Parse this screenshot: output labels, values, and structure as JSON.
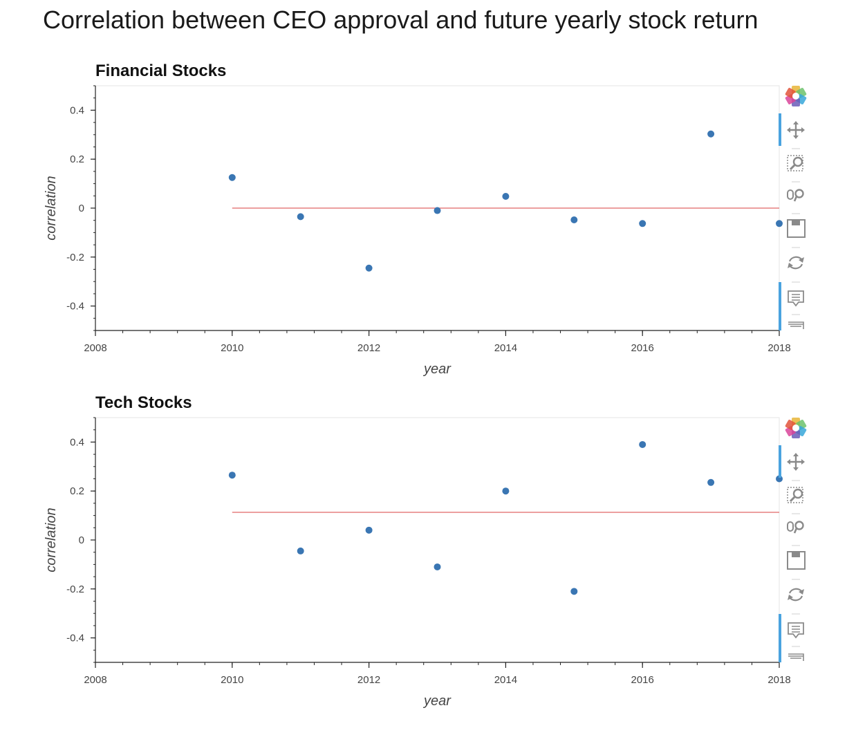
{
  "page": {
    "title": "Correlation between CEO approval and future yearly stock return"
  },
  "chart_data": [
    {
      "type": "scatter",
      "title": "Financial Stocks",
      "xlabel": "year",
      "ylabel": "correlation",
      "xlim": [
        2008,
        2018
      ],
      "ylim": [
        -0.5,
        0.5
      ],
      "x_ticks": [
        2008,
        2010,
        2012,
        2014,
        2016,
        2018
      ],
      "x_tick_labels": [
        "2008",
        "2010",
        "2012",
        "2014",
        "2016",
        "2018"
      ],
      "y_ticks": [
        0.4,
        0.2,
        0,
        -0.2,
        -0.4
      ],
      "y_tick_labels": [
        "0.4",
        "0.2",
        "0",
        "-0.2",
        "-0.4"
      ],
      "grid": false,
      "series": [
        {
          "x": [
            2010,
            2011,
            2012,
            2013,
            2014,
            2015,
            2016,
            2017,
            2018
          ],
          "y": [
            0.125,
            -0.035,
            -0.245,
            -0.01,
            0.048,
            -0.048,
            -0.063,
            0.303,
            -0.063
          ],
          "color": "#3a76b3"
        }
      ],
      "reference_line": {
        "x": [
          2010,
          2018
        ],
        "y": 0.0,
        "color": "#e06666"
      }
    },
    {
      "type": "scatter",
      "title": "Tech Stocks",
      "xlabel": "year",
      "ylabel": "correlation",
      "xlim": [
        2008,
        2018
      ],
      "ylim": [
        -0.5,
        0.5
      ],
      "x_ticks": [
        2008,
        2010,
        2012,
        2014,
        2016,
        2018
      ],
      "x_tick_labels": [
        "2008",
        "2010",
        "2012",
        "2014",
        "2016",
        "2018"
      ],
      "y_ticks": [
        0.4,
        0.2,
        0,
        -0.2,
        -0.4
      ],
      "y_tick_labels": [
        "0.4",
        "0.2",
        "0",
        "-0.2",
        "-0.4"
      ],
      "grid": false,
      "series": [
        {
          "x": [
            2010,
            2011,
            2012,
            2013,
            2014,
            2015,
            2016,
            2017,
            2018
          ],
          "y": [
            0.265,
            -0.045,
            0.04,
            -0.11,
            0.2,
            -0.21,
            0.39,
            0.235,
            0.25
          ],
          "color": "#3a76b3"
        }
      ],
      "reference_line": {
        "x": [
          2010,
          2018
        ],
        "y": 0.113,
        "color": "#e06666"
      }
    }
  ],
  "toolbar": {
    "items": [
      {
        "icon": "bokeh-logo-icon"
      },
      {
        "icon": "pan-icon"
      },
      {
        "icon": "box-zoom-icon"
      },
      {
        "icon": "wheel-zoom-icon"
      },
      {
        "icon": "save-icon"
      },
      {
        "icon": "reset-icon"
      },
      {
        "icon": "hover-icon"
      },
      {
        "icon": "hover-icon-2"
      }
    ],
    "active_color": "#4aa3df"
  }
}
